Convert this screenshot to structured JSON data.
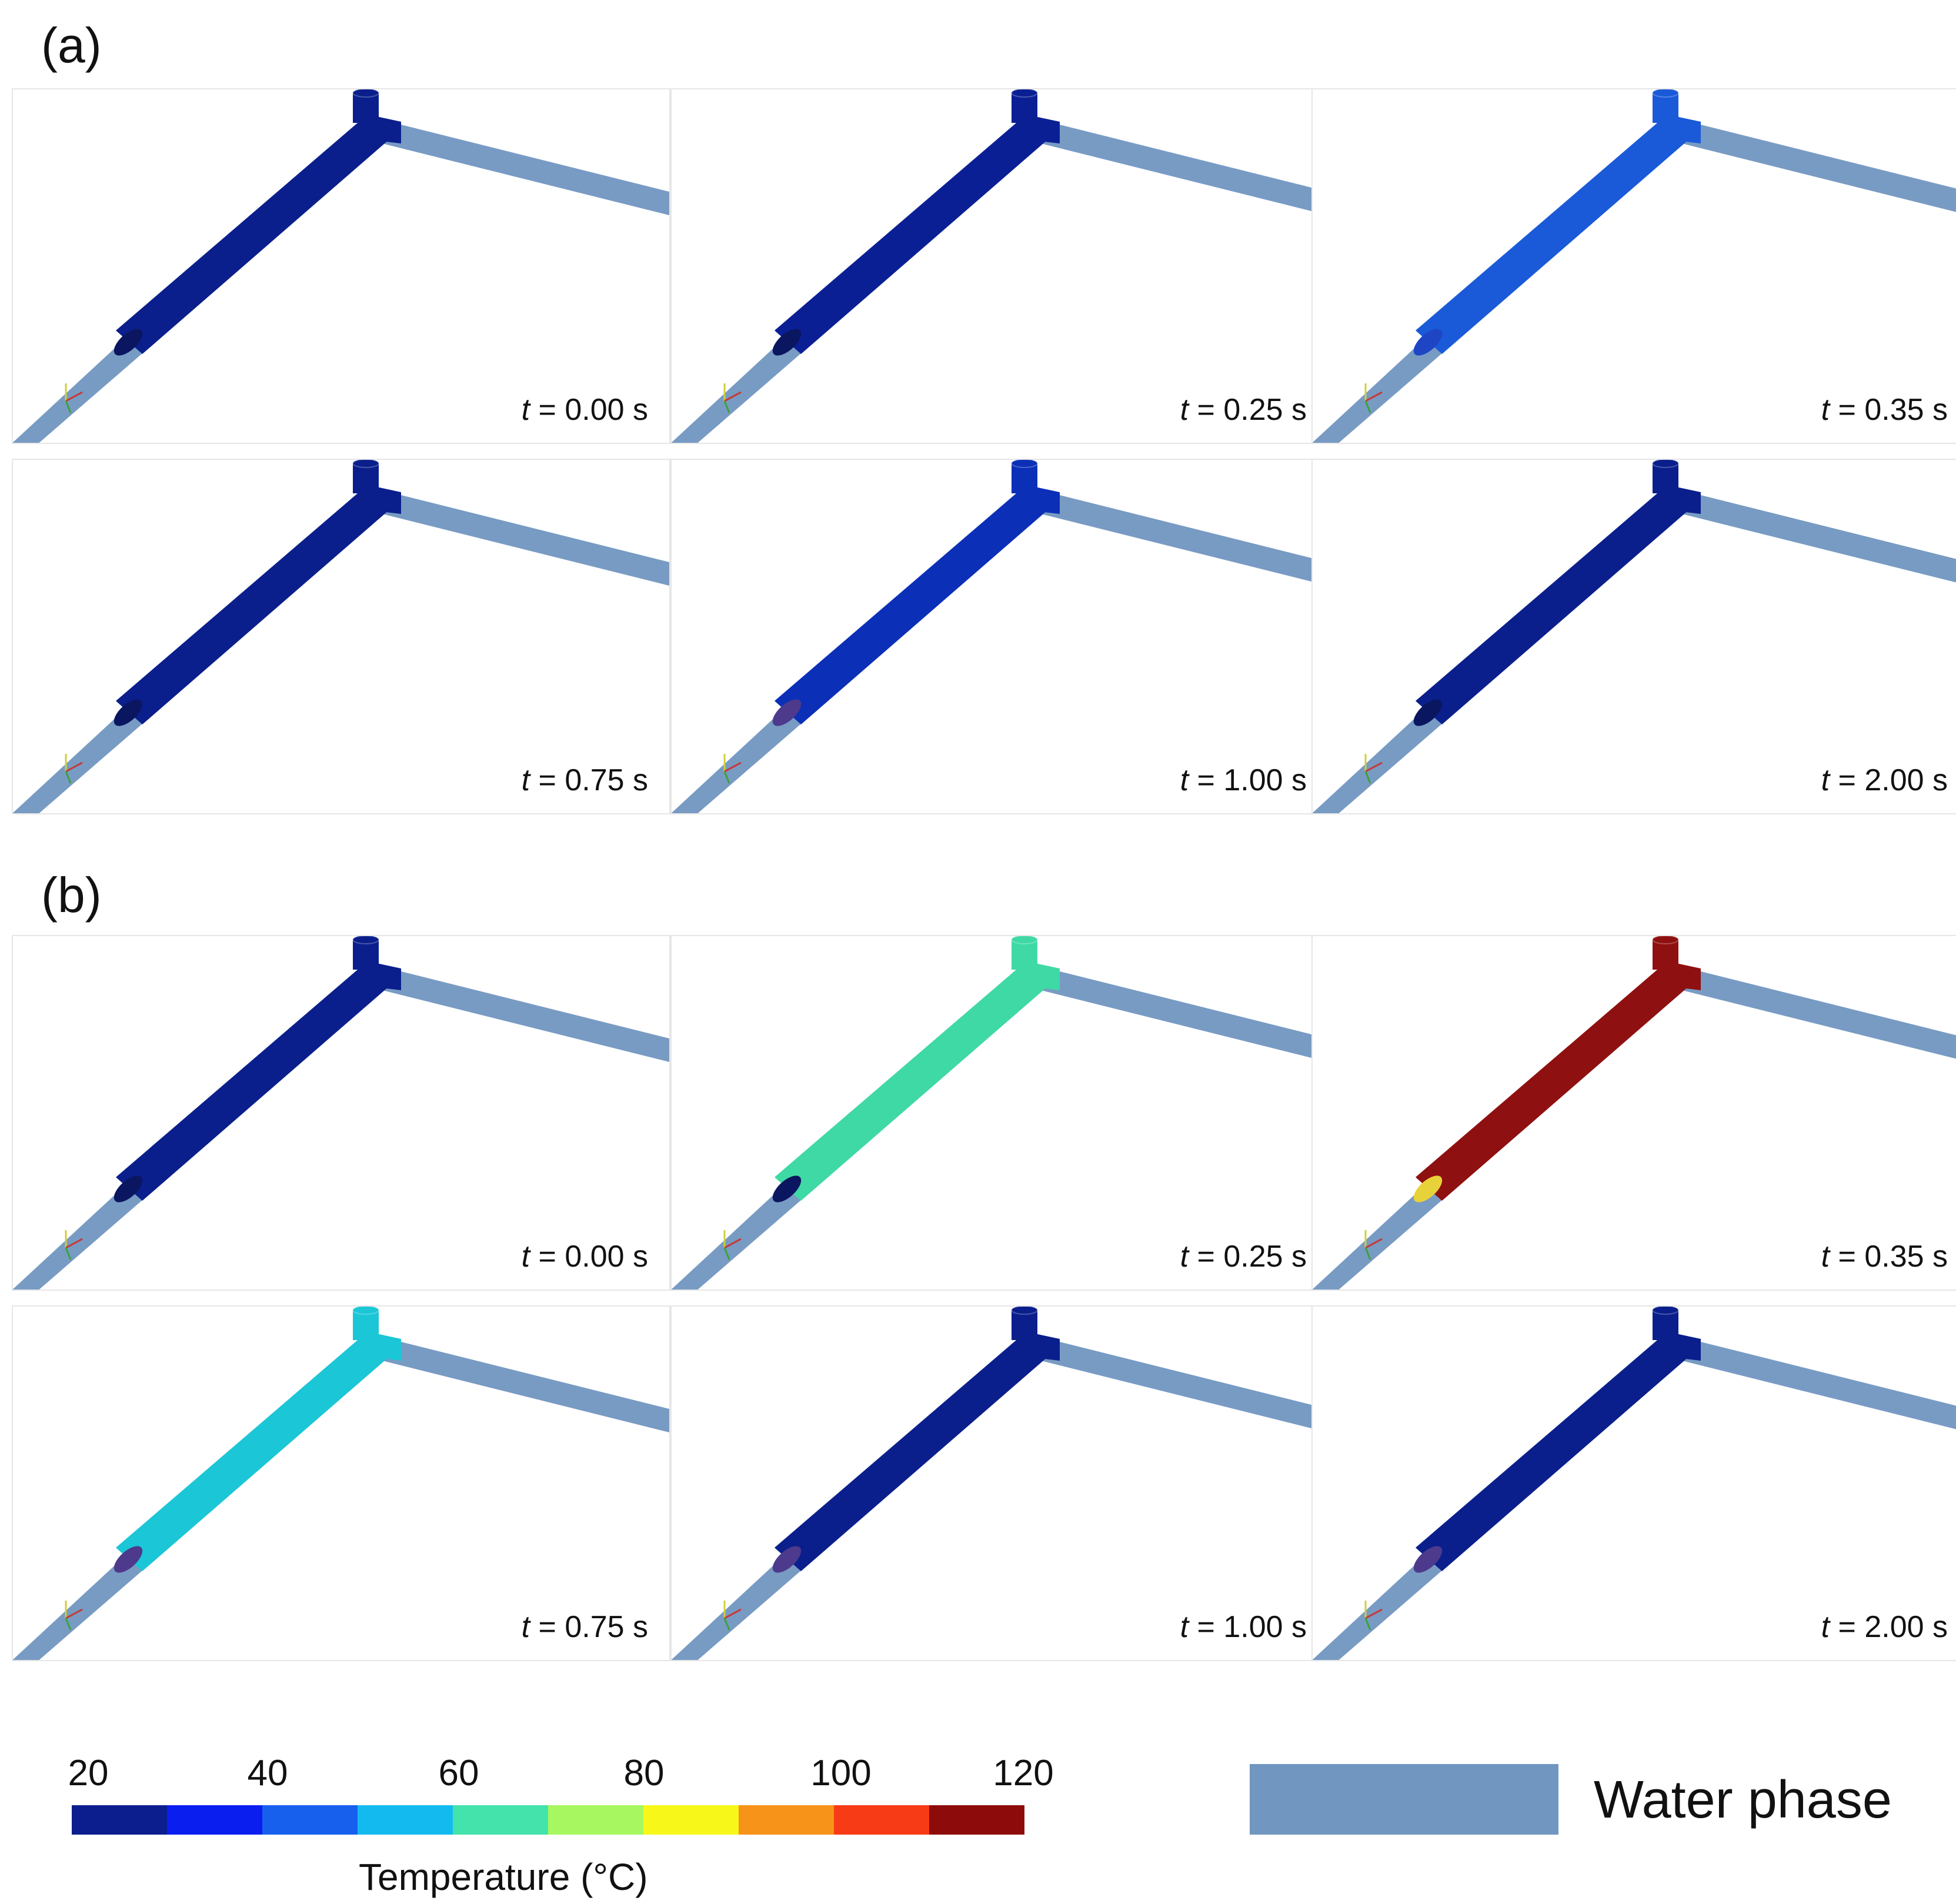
{
  "sections": [
    {
      "label": "(a)",
      "panels": [
        {
          "time": "0.00",
          "fill": "#0a1f8c",
          "interface": "dark",
          "note": ""
        },
        {
          "time": "0.25",
          "fill": "#0b1f95",
          "interface": "dark",
          "note": ""
        },
        {
          "time": "0.35",
          "fill": "#1a5ad8",
          "interface": "blue",
          "note": ""
        },
        {
          "time": "0.75",
          "fill": "#0a1f8c",
          "interface": "dark",
          "note": ""
        },
        {
          "time": "1.00",
          "fill": "#0c2fb8",
          "interface": "mixed",
          "note": ""
        },
        {
          "time": "2.00",
          "fill": "#0a1f8c",
          "interface": "dark",
          "note": ""
        }
      ]
    },
    {
      "label": "(b)",
      "panels": [
        {
          "time": "0.00",
          "fill": "#0a1f8c",
          "interface": "dark",
          "note": ""
        },
        {
          "time": "0.25",
          "fill": "#3fd9a5",
          "interface": "dark",
          "note": ""
        },
        {
          "time": "0.35",
          "fill": "#8f1010",
          "interface": "rainbow",
          "note": ""
        },
        {
          "time": "0.75",
          "fill": "#1bc6d6",
          "interface": "mixed",
          "note": ""
        },
        {
          "time": "1.00",
          "fill": "#0a1f8c",
          "interface": "mixed",
          "note": ""
        },
        {
          "time": "2.00",
          "fill": "#0a1f8c",
          "interface": "mixed",
          "note": ""
        }
      ]
    }
  ],
  "time_prefix": "t",
  "time_suffix": "s",
  "colorbar": {
    "title": "Temperature (°C)",
    "ticks": [
      "20",
      "40",
      "60",
      "80",
      "100",
      "120"
    ],
    "colors": [
      "#0c1e8e",
      "#0a1ef0",
      "#1760ee",
      "#13baf0",
      "#43e3ab",
      "#a6f760",
      "#f7f71a",
      "#f79318",
      "#f73b16",
      "#8d0b0b"
    ]
  },
  "legend": {
    "swatch_color": "#7196c0",
    "label": "Water phase"
  }
}
